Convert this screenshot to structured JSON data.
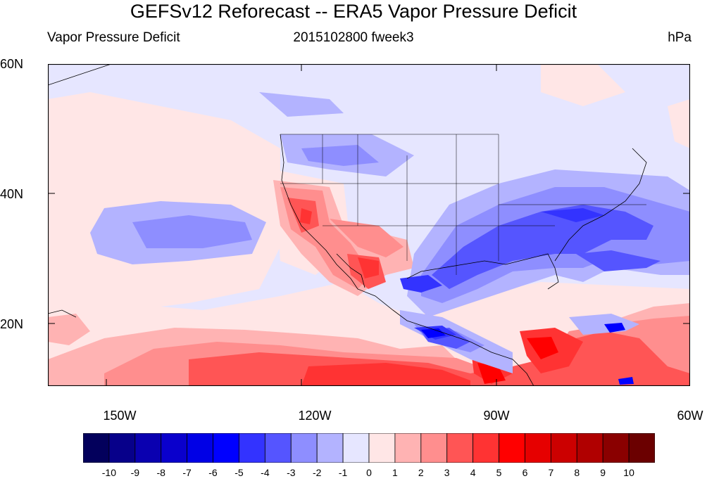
{
  "title": "GEFSv12 Reforecast -- ERA5 Vapor Pressure Deficit",
  "subtitle_left": "Vapor Pressure Deficit",
  "subtitle_center": "2015102800 fweek3",
  "subtitle_right": "hPa",
  "lat_labels": [
    "60N",
    "40N",
    "20N"
  ],
  "lon_labels": [
    "150W",
    "120W",
    "90W",
    "60W"
  ],
  "colorbar": {
    "labels": [
      "-10",
      "-9",
      "-8",
      "-7",
      "-6",
      "-5",
      "-4",
      "-3",
      "-2",
      "-1",
      "0",
      "1",
      "2",
      "3",
      "4",
      "5",
      "6",
      "7",
      "8",
      "9",
      "10"
    ],
    "colors": [
      "#03005c",
      "#07008a",
      "#0a00b0",
      "#0a00cc",
      "#0000e6",
      "#0000ff",
      "#3333ff",
      "#5555ff",
      "#8e8eff",
      "#b3b3ff",
      "#e6e6ff",
      "#ffe6e6",
      "#ffb3b3",
      "#ff8e8e",
      "#ff5555",
      "#ff3333",
      "#ff0000",
      "#e60000",
      "#cc0000",
      "#b00000",
      "#8a0000",
      "#6b0000"
    ]
  },
  "map": {
    "lon_range": [
      -160,
      -60
    ],
    "lat_range": [
      10,
      60
    ]
  }
}
